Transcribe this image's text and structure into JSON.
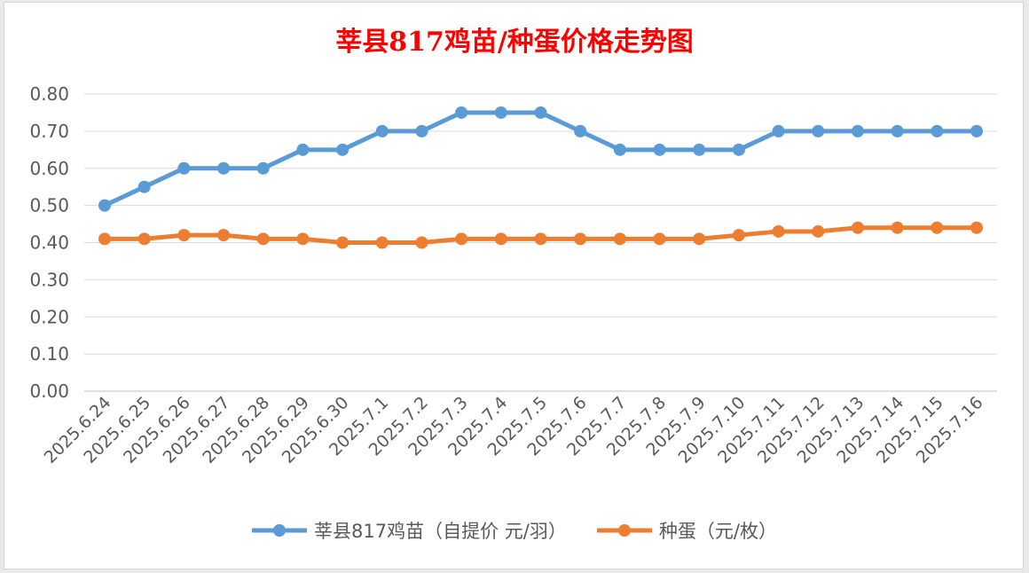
{
  "chart_data": {
    "type": "line",
    "title": "莘县817鸡苗/种蛋价格走势图",
    "categories": [
      "2025.6.24",
      "2025.6.25",
      "2025.6.26",
      "2025.6.27",
      "2025.6.28",
      "2025.6.29",
      "2025.6.30",
      "2025.7.1",
      "2025.7.2",
      "2025.7.3",
      "2025.7.4",
      "2025.7.5",
      "2025.7.6",
      "2025.7.7",
      "2025.7.8",
      "2025.7.9",
      "2025.7.10",
      "2025.7.11",
      "2025.7.12",
      "2025.7.13",
      "2025.7.14",
      "2025.7.15",
      "2025.7.16"
    ],
    "series": [
      {
        "name": "莘县817鸡苗（自提价 元/羽）",
        "color": "#5b9bd5",
        "values": [
          0.5,
          0.55,
          0.6,
          0.6,
          0.6,
          0.65,
          0.65,
          0.7,
          0.7,
          0.75,
          0.75,
          0.75,
          0.7,
          0.65,
          0.65,
          0.65,
          0.65,
          0.7,
          0.7,
          0.7,
          0.7,
          0.7,
          0.7
        ]
      },
      {
        "name": "种蛋（元/枚）",
        "color": "#ed7d31",
        "values": [
          0.41,
          0.41,
          0.42,
          0.42,
          0.41,
          0.41,
          0.4,
          0.4,
          0.4,
          0.41,
          0.41,
          0.41,
          0.41,
          0.41,
          0.41,
          0.41,
          0.42,
          0.43,
          0.43,
          0.44,
          0.44,
          0.44,
          0.44
        ]
      }
    ],
    "ylim": [
      0,
      0.8
    ],
    "yticks": [
      "0.00",
      "0.10",
      "0.20",
      "0.30",
      "0.40",
      "0.50",
      "0.60",
      "0.70",
      "0.80"
    ],
    "grid": true,
    "legend": "bottom",
    "title_color": "#ff0000"
  }
}
